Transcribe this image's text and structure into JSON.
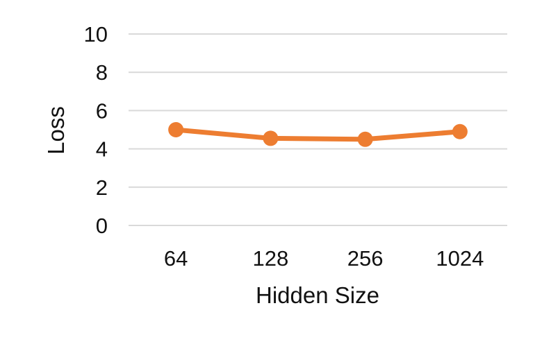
{
  "chart_data": {
    "type": "line",
    "categories": [
      "64",
      "128",
      "256",
      "1024"
    ],
    "series": [
      {
        "values": [
          5.0,
          4.55,
          4.5,
          4.9
        ]
      }
    ],
    "xlabel": "Hidden Size",
    "ylabel": "Loss",
    "ylim": [
      0,
      10
    ],
    "yticks": [
      "0",
      "2",
      "4",
      "6",
      "8",
      "10"
    ],
    "grid": true,
    "legend": "none",
    "line_color": "#ED7D31",
    "grid_color": "#D9D9D9"
  }
}
